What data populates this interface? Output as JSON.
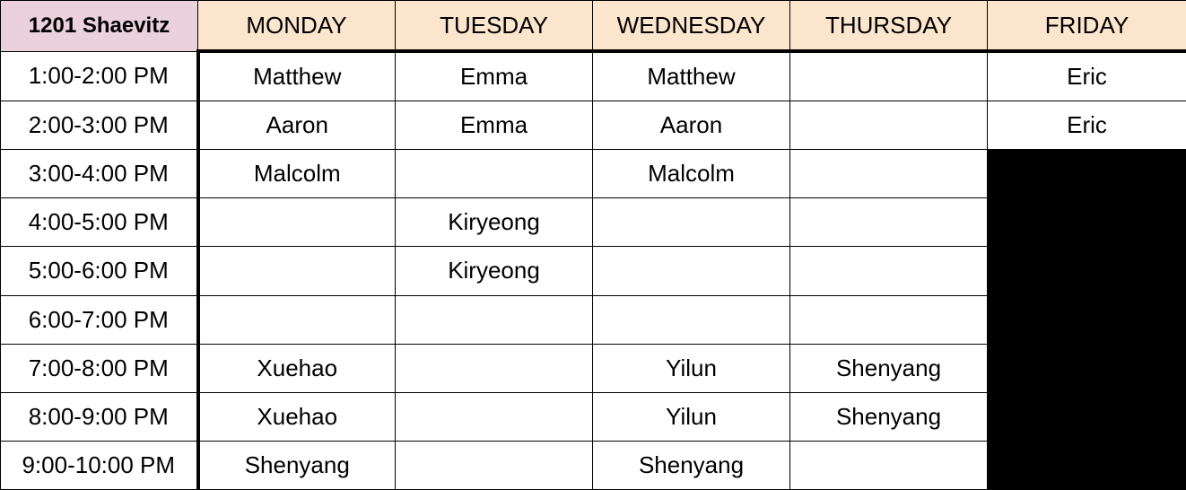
{
  "colors": {
    "corner_bg": "#ead1dc",
    "header_bg": "#fce5cd",
    "blocked": "#000000",
    "border": "#000000"
  },
  "schedule": {
    "room": "1201 Shaevitz",
    "days": [
      "MONDAY",
      "TUESDAY",
      "WEDNESDAY",
      "THURSDAY",
      "FRIDAY"
    ],
    "rows": [
      {
        "time": "1:00-2:00 PM",
        "cells": [
          "Matthew",
          "Emma",
          "Matthew",
          "",
          "Eric"
        ]
      },
      {
        "time": "2:00-3:00 PM",
        "cells": [
          "Aaron",
          "Emma",
          "Aaron",
          "",
          "Eric"
        ]
      },
      {
        "time": "3:00-4:00 PM",
        "cells": [
          "Malcolm",
          "",
          "Malcolm",
          "",
          ""
        ]
      },
      {
        "time": "4:00-5:00 PM",
        "cells": [
          "",
          "Kiryeong",
          "",
          "",
          ""
        ]
      },
      {
        "time": "5:00-6:00 PM",
        "cells": [
          "",
          "Kiryeong",
          "",
          "",
          ""
        ]
      },
      {
        "time": "6:00-7:00 PM",
        "cells": [
          "",
          "",
          "",
          "",
          ""
        ]
      },
      {
        "time": "7:00-8:00 PM",
        "cells": [
          "Xuehao",
          "",
          "Yilun",
          "Shenyang",
          ""
        ]
      },
      {
        "time": "8:00-9:00 PM",
        "cells": [
          "Xuehao",
          "",
          "Yilun",
          "Shenyang",
          ""
        ]
      },
      {
        "time": "9:00-10:00 PM",
        "cells": [
          "Shenyang",
          "",
          "Shenyang",
          "",
          ""
        ]
      }
    ],
    "blocked_friday_from_row": 2
  }
}
